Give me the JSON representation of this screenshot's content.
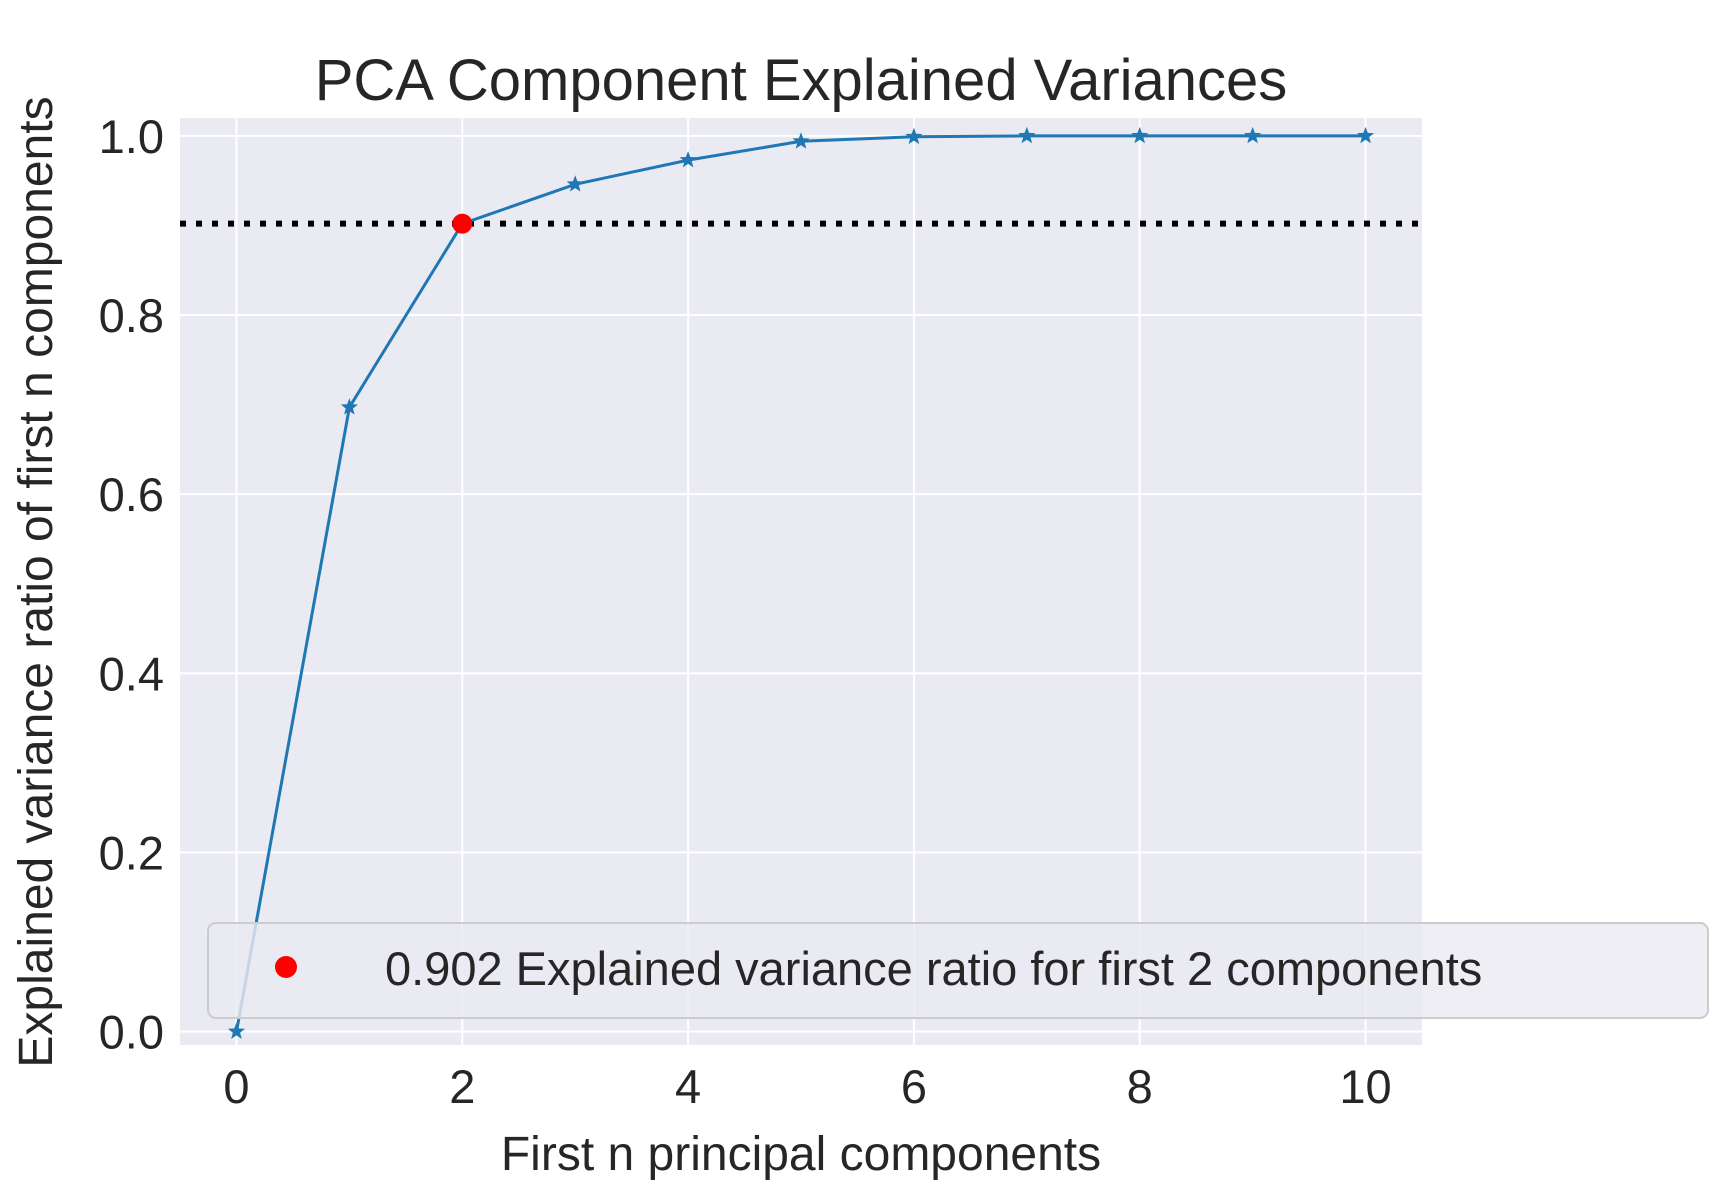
{
  "chart_data": {
    "type": "line",
    "title": "PCA Component Explained Variances",
    "xlabel": "First n principal components",
    "ylabel": "Explained variance ratio of first n components",
    "xlim": [
      -0.5,
      10.5
    ],
    "ylim": [
      -0.015,
      1.02
    ],
    "xticks": [
      0,
      2,
      4,
      6,
      8,
      10
    ],
    "yticks": [
      0.0,
      0.2,
      0.4,
      0.6,
      0.8,
      1.0
    ],
    "grid": true,
    "series": [
      {
        "x": [
          0,
          1,
          2,
          3,
          4,
          5,
          6,
          7,
          8,
          9,
          10
        ],
        "values": [
          0.0,
          0.697,
          0.902,
          0.946,
          0.973,
          0.994,
          0.999,
          1.0,
          1.0,
          1.0,
          1.0
        ],
        "color": "#1f77b4",
        "marker": "star"
      }
    ],
    "threshold": {
      "y": 0.902,
      "color": "#000000",
      "style": "dotted"
    },
    "highlight": {
      "x": 2,
      "y": 0.902,
      "color": "#ff0000"
    },
    "legend": {
      "placement": "lower-right",
      "entries": [
        {
          "label": "0.902 Explained variance ratio for first 2 components",
          "color": "#ff0000",
          "marker": "dot"
        }
      ]
    },
    "colors": {
      "plot_background": "#eaeaf2",
      "grid": "#ffffff",
      "text": "#262626"
    }
  }
}
